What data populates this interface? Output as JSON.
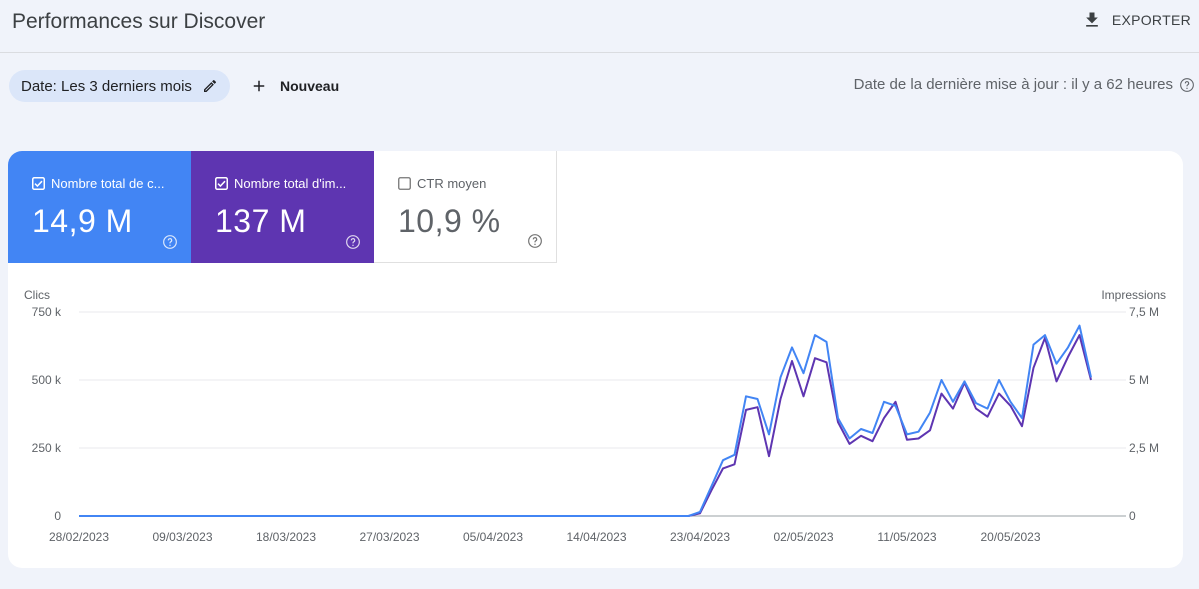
{
  "header": {
    "title": "Performances sur Discover",
    "export_label": "EXPORTER",
    "export_icon": "download-icon"
  },
  "filters": {
    "date_chip_label": "Date: Les 3 derniers mois",
    "edit_icon": "pencil-icon",
    "new_label": "Nouveau",
    "new_icon": "plus-icon",
    "last_update": "Date de la dernière mise à jour : il y a 62 heures",
    "help_icon": "help-circle-icon"
  },
  "metrics": [
    {
      "label": "Nombre total de c...",
      "value": "14,9 M",
      "checked": true,
      "color": "#4285f4"
    },
    {
      "label": "Nombre total d'im...",
      "value": "137 M",
      "checked": true,
      "color": "#5e35b1"
    },
    {
      "label": "CTR moyen",
      "value": "10,9 %",
      "checked": false,
      "color": "#ffffff"
    }
  ],
  "chart_data": {
    "type": "line",
    "left_axis_label": "Clics",
    "right_axis_label": "Impressions",
    "left_ticks": [
      "0",
      "250 k",
      "500 k",
      "750 k"
    ],
    "right_ticks": [
      "0",
      "2,5 M",
      "5 M",
      "7,5 M"
    ],
    "left_ylim": [
      0,
      750000
    ],
    "right_ylim": [
      0,
      7500000
    ],
    "x_ticks": [
      "28/02/2023",
      "09/03/2023",
      "18/03/2023",
      "27/03/2023",
      "05/04/2023",
      "14/04/2023",
      "23/04/2023",
      "02/05/2023",
      "11/05/2023",
      "20/05/2023"
    ],
    "x_range": [
      "28/02/2023",
      "29/05/2023"
    ],
    "grid": true,
    "series": [
      {
        "name": "Clics",
        "axis": "left",
        "color": "#4285f4",
        "points": [
          [
            "28/02/2023",
            0
          ],
          [
            "22/04/2023",
            0
          ],
          [
            "23/04/2023",
            15000
          ],
          [
            "24/04/2023",
            110000
          ],
          [
            "25/04/2023",
            205000
          ],
          [
            "26/04/2023",
            225000
          ],
          [
            "27/04/2023",
            440000
          ],
          [
            "28/04/2023",
            430000
          ],
          [
            "29/04/2023",
            300000
          ],
          [
            "30/04/2023",
            510000
          ],
          [
            "01/05/2023",
            620000
          ],
          [
            "02/05/2023",
            525000
          ],
          [
            "03/05/2023",
            665000
          ],
          [
            "04/05/2023",
            640000
          ],
          [
            "05/05/2023",
            360000
          ],
          [
            "06/05/2023",
            285000
          ],
          [
            "07/05/2023",
            320000
          ],
          [
            "08/05/2023",
            305000
          ],
          [
            "09/05/2023",
            420000
          ],
          [
            "10/05/2023",
            405000
          ],
          [
            "11/05/2023",
            300000
          ],
          [
            "12/05/2023",
            310000
          ],
          [
            "13/05/2023",
            380000
          ],
          [
            "14/05/2023",
            500000
          ],
          [
            "15/05/2023",
            420000
          ],
          [
            "16/05/2023",
            495000
          ],
          [
            "17/05/2023",
            415000
          ],
          [
            "18/05/2023",
            395000
          ],
          [
            "19/05/2023",
            500000
          ],
          [
            "20/05/2023",
            420000
          ],
          [
            "21/05/2023",
            360000
          ],
          [
            "22/05/2023",
            630000
          ],
          [
            "23/05/2023",
            665000
          ],
          [
            "24/05/2023",
            560000
          ],
          [
            "25/05/2023",
            620000
          ],
          [
            "26/05/2023",
            700000
          ],
          [
            "27/05/2023",
            510000
          ]
        ]
      },
      {
        "name": "Impressions",
        "axis": "right",
        "color": "#5e35b1",
        "points": [
          [
            "28/02/2023",
            0
          ],
          [
            "22/04/2023",
            0
          ],
          [
            "23/04/2023",
            100000
          ],
          [
            "24/04/2023",
            950000
          ],
          [
            "25/04/2023",
            1750000
          ],
          [
            "26/04/2023",
            1900000
          ],
          [
            "27/04/2023",
            3900000
          ],
          [
            "28/04/2023",
            4000000
          ],
          [
            "29/04/2023",
            2200000
          ],
          [
            "30/04/2023",
            4300000
          ],
          [
            "01/05/2023",
            5700000
          ],
          [
            "02/05/2023",
            4400000
          ],
          [
            "03/05/2023",
            5800000
          ],
          [
            "04/05/2023",
            5650000
          ],
          [
            "05/05/2023",
            3450000
          ],
          [
            "06/05/2023",
            2650000
          ],
          [
            "07/05/2023",
            2950000
          ],
          [
            "08/05/2023",
            2750000
          ],
          [
            "09/05/2023",
            3600000
          ],
          [
            "10/05/2023",
            4200000
          ],
          [
            "11/05/2023",
            2800000
          ],
          [
            "12/05/2023",
            2850000
          ],
          [
            "13/05/2023",
            3150000
          ],
          [
            "14/05/2023",
            4500000
          ],
          [
            "15/05/2023",
            3950000
          ],
          [
            "16/05/2023",
            4900000
          ],
          [
            "17/05/2023",
            3950000
          ],
          [
            "18/05/2023",
            3650000
          ],
          [
            "19/05/2023",
            4500000
          ],
          [
            "20/05/2023",
            4050000
          ],
          [
            "21/05/2023",
            3300000
          ],
          [
            "22/05/2023",
            5450000
          ],
          [
            "23/05/2023",
            6550000
          ],
          [
            "24/05/2023",
            4950000
          ],
          [
            "25/05/2023",
            5850000
          ],
          [
            "26/05/2023",
            6650000
          ],
          [
            "27/05/2023",
            5000000
          ]
        ]
      }
    ]
  }
}
